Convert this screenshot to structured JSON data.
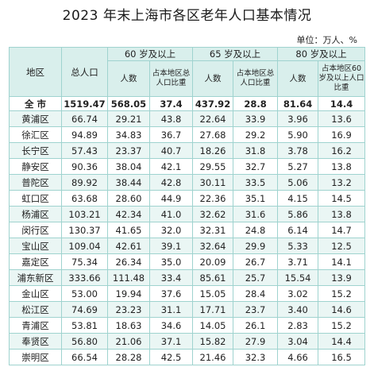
{
  "title": "2023 年末上海市各区老年人口基本情况",
  "unit": "单位：万人、%",
  "header": {
    "area": "地区",
    "total": "总人口",
    "g60": "60 岁及以上",
    "g65": "65 岁及以上",
    "g80": "80 岁及以上",
    "count": "人数",
    "ratio_total": "占本地区总人口比重",
    "ratio_80": "占本地区60 岁及以上人口比重"
  },
  "rows": [
    {
      "area": "全 市",
      "total": "1519.47",
      "p60": "568.05",
      "r60": "37.4",
      "p65": "437.92",
      "r65": "28.8",
      "p80": "81.64",
      "r80": "14.4"
    },
    {
      "area": "黄浦区",
      "total": "66.74",
      "p60": "29.21",
      "r60": "43.8",
      "p65": "22.64",
      "r65": "33.9",
      "p80": "3.96",
      "r80": "13.6"
    },
    {
      "area": "徐汇区",
      "total": "94.89",
      "p60": "34.83",
      "r60": "36.7",
      "p65": "27.68",
      "r65": "29.2",
      "p80": "5.90",
      "r80": "16.9"
    },
    {
      "area": "长宁区",
      "total": "57.43",
      "p60": "23.37",
      "r60": "40.7",
      "p65": "18.26",
      "r65": "31.8",
      "p80": "3.78",
      "r80": "16.2"
    },
    {
      "area": "静安区",
      "total": "90.36",
      "p60": "38.04",
      "r60": "42.1",
      "p65": "29.55",
      "r65": "32.7",
      "p80": "5.27",
      "r80": "13.8"
    },
    {
      "area": "普陀区",
      "total": "89.92",
      "p60": "38.44",
      "r60": "42.8",
      "p65": "30.11",
      "r65": "33.5",
      "p80": "5.06",
      "r80": "13.2"
    },
    {
      "area": "虹口区",
      "total": "63.68",
      "p60": "28.60",
      "r60": "44.9",
      "p65": "22.36",
      "r65": "35.1",
      "p80": "4.15",
      "r80": "14.5"
    },
    {
      "area": "杨浦区",
      "total": "103.21",
      "p60": "42.34",
      "r60": "41.0",
      "p65": "32.62",
      "r65": "31.6",
      "p80": "5.86",
      "r80": "13.8"
    },
    {
      "area": "闵行区",
      "total": "130.37",
      "p60": "41.65",
      "r60": "32.0",
      "p65": "32.31",
      "r65": "24.8",
      "p80": "6.14",
      "r80": "14.7"
    },
    {
      "area": "宝山区",
      "total": "109.04",
      "p60": "42.61",
      "r60": "39.1",
      "p65": "32.64",
      "r65": "29.9",
      "p80": "5.33",
      "r80": "12.5"
    },
    {
      "area": "嘉定区",
      "total": "75.34",
      "p60": "26.34",
      "r60": "35.0",
      "p65": "20.09",
      "r65": "26.7",
      "p80": "3.71",
      "r80": "14.1"
    },
    {
      "area": "浦东新区",
      "total": "333.66",
      "p60": "111.48",
      "r60": "33.4",
      "p65": "85.61",
      "r65": "25.7",
      "p80": "15.54",
      "r80": "13.9"
    },
    {
      "area": "金山区",
      "total": "53.00",
      "p60": "19.94",
      "r60": "37.6",
      "p65": "15.05",
      "r65": "28.4",
      "p80": "3.02",
      "r80": "15.2"
    },
    {
      "area": "松江区",
      "total": "74.69",
      "p60": "23.23",
      "r60": "31.1",
      "p65": "17.71",
      "r65": "23.7",
      "p80": "3.40",
      "r80": "14.6"
    },
    {
      "area": "青浦区",
      "total": "53.81",
      "p60": "18.63",
      "r60": "34.6",
      "p65": "14.05",
      "r65": "26.1",
      "p80": "2.83",
      "r80": "15.2"
    },
    {
      "area": "奉贤区",
      "total": "56.80",
      "p60": "21.06",
      "r60": "37.1",
      "p65": "15.82",
      "r65": "27.9",
      "p80": "3.04",
      "r80": "14.4"
    },
    {
      "area": "崇明区",
      "total": "66.54",
      "p60": "28.28",
      "r60": "42.5",
      "p65": "21.46",
      "r65": "32.3",
      "p80": "4.66",
      "r80": "16.5"
    }
  ]
}
